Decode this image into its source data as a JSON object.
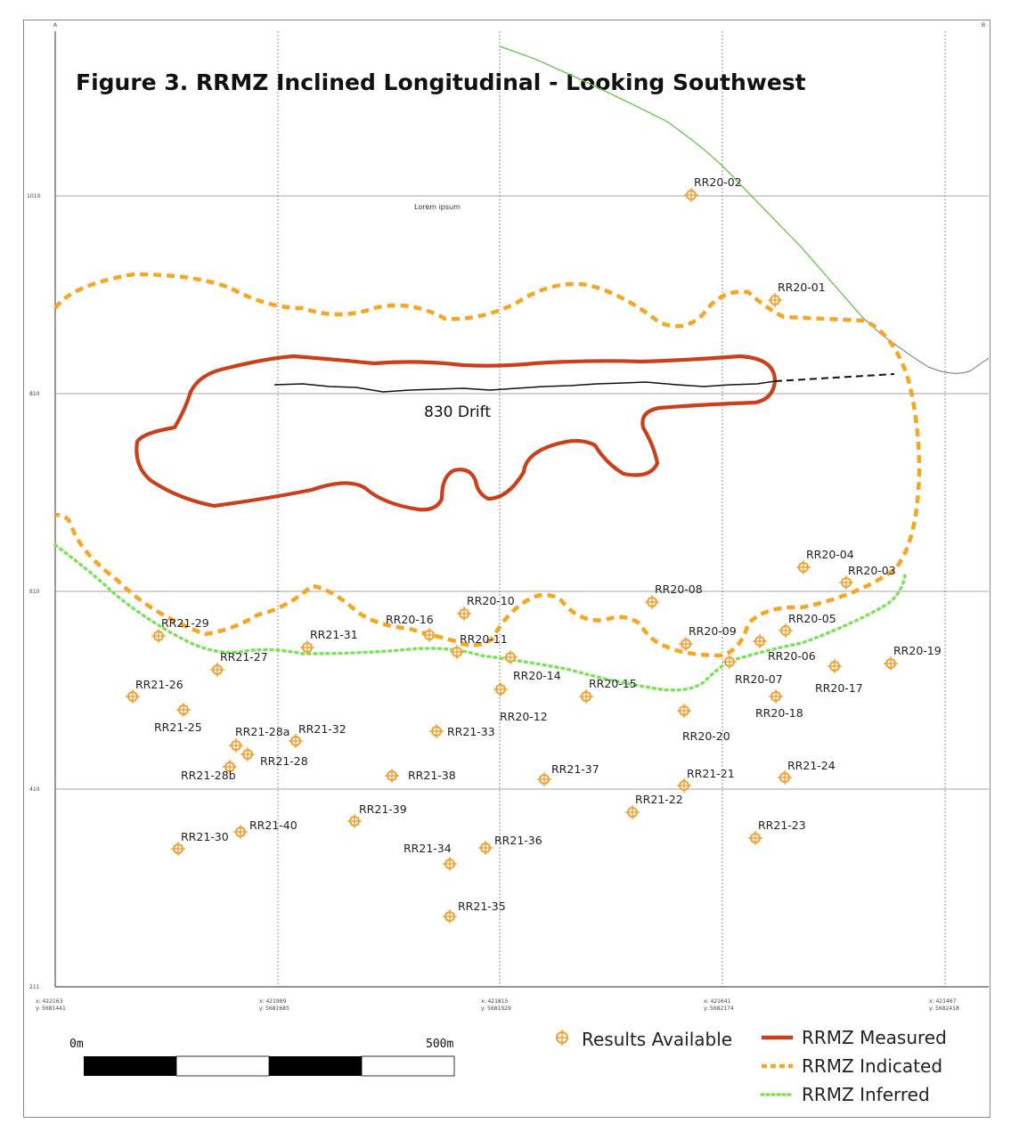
{
  "title": "Figure 3. RRMZ Inclined Longitudinal - Looking Southwest",
  "corner_labels": {
    "left": "A",
    "right": "B"
  },
  "placeholder_text": "Lorem ipsum",
  "drift_label": "830 Drift",
  "elevation_labels": [
    "1010",
    "810",
    "610",
    "410",
    "211"
  ],
  "easting_labels": [
    [
      "x: 422163",
      "y: 5681441"
    ],
    [
      "x: 421989",
      "y: 5681685"
    ],
    [
      "x: 421815",
      "y: 5681929"
    ],
    [
      "x: 421641",
      "y: 5682174"
    ],
    [
      "x: 421467",
      "y: 5682418"
    ]
  ],
  "scale": {
    "start": "0m",
    "end": "500m"
  },
  "legend": {
    "results": "Results Available",
    "measured": "RRMZ Measured",
    "indicated": "RRMZ Indicated",
    "inferred": "RRMZ Inferred"
  },
  "colors": {
    "measured": "#c9401a",
    "indicated": "#f5a623",
    "inferred": "#7be35a",
    "topo_green": "#6fe04e",
    "marker": "#f0a030",
    "grid": "#777777"
  },
  "drill_holes": [
    "RR20-02",
    "RR20-01",
    "RR20-04",
    "RR20-03",
    "RR20-08",
    "RR20-10",
    "RR20-16",
    "RR20-11",
    "RR20-14",
    "RR20-12",
    "RR20-15",
    "RR20-09",
    "RR20-05",
    "RR20-06",
    "RR20-07",
    "RR20-18",
    "RR20-17",
    "RR20-19",
    "RR20-20",
    "RR21-29",
    "RR21-31",
    "RR21-27",
    "RR21-26",
    "RR21-25",
    "RR21-28a",
    "RR21-32",
    "RR21-28",
    "RR21-28b",
    "RR21-33",
    "RR21-38",
    "RR21-37",
    "RR21-21",
    "RR21-24",
    "RR21-22",
    "RR21-39",
    "RR21-40",
    "RR21-30",
    "RR21-34",
    "RR21-36",
    "RR21-23",
    "RR21-35"
  ]
}
